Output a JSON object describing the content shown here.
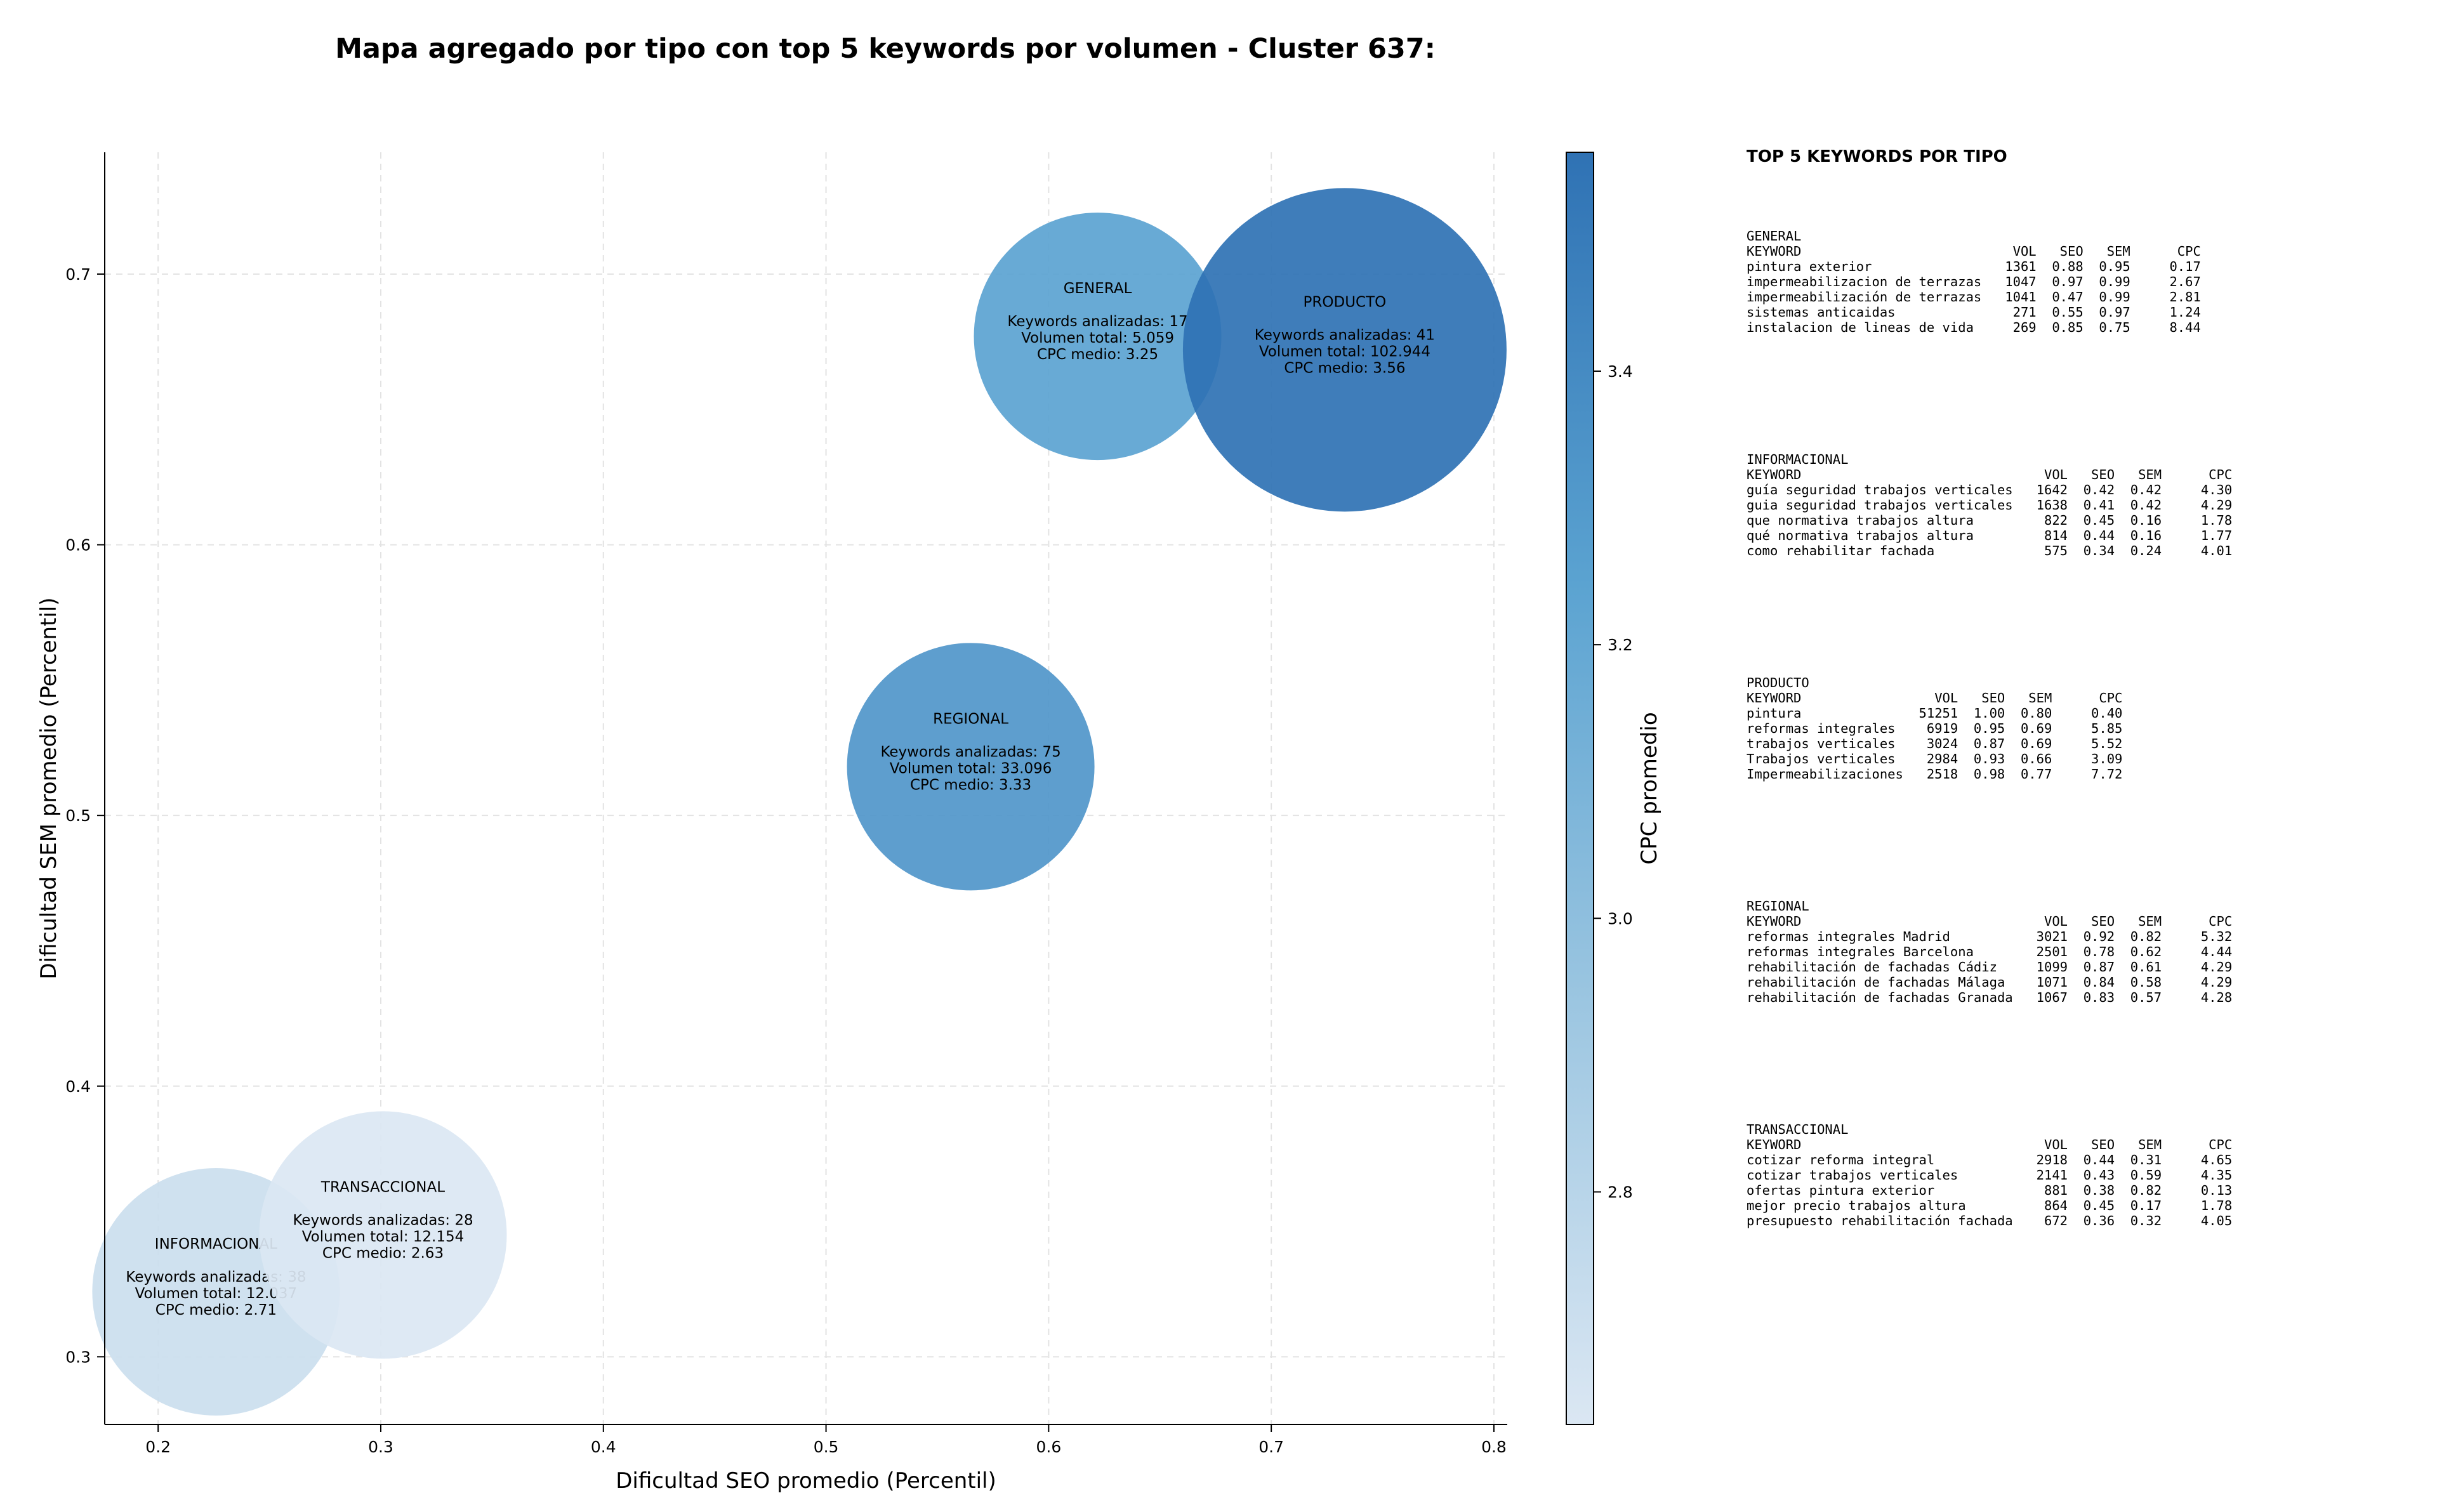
{
  "title": "Mapa agregado por tipo con top 5 keywords por volumen - Cluster 637:",
  "chart_data": {
    "type": "scatter",
    "xlabel": "Dificultad SEO promedio (Percentil)",
    "ylabel": "Dificultad SEM promedio (Percentil)",
    "xlim": [
      0.176,
      0.806
    ],
    "ylim": [
      0.275,
      0.745
    ],
    "xticks": [
      "0.2",
      "0.3",
      "0.4",
      "0.5",
      "0.6",
      "0.7",
      "0.8"
    ],
    "yticks": [
      "0.3",
      "0.4",
      "0.5",
      "0.6",
      "0.7"
    ],
    "grid": true,
    "colorbar": {
      "label": "CPC promedio",
      "range": [
        2.63,
        3.56
      ],
      "ticks": [
        "2.8",
        "3.0",
        "3.2",
        "3.4"
      ],
      "colormap": [
        "#dbe7f3",
        "#9cc6e1",
        "#5ba3d1",
        "#2f72b4"
      ]
    },
    "bubble_info_labels": {
      "keywords": "Keywords analizadas:",
      "volume": "Volumen total:",
      "cpc": "CPC medio:"
    },
    "points": [
      {
        "name": "GENERAL",
        "x": 0.622,
        "y": 0.677,
        "keywords": "17",
        "volume": "5.059",
        "volume_value": 5059,
        "cpc": "3.25",
        "cpc_value": 3.25
      },
      {
        "name": "PRODUCTO",
        "x": 0.733,
        "y": 0.672,
        "keywords": "41",
        "volume": "102.944",
        "volume_value": 102944,
        "cpc": "3.56",
        "cpc_value": 3.56
      },
      {
        "name": "REGIONAL",
        "x": 0.565,
        "y": 0.518,
        "keywords": "75",
        "volume": "33.096",
        "volume_value": 33096,
        "cpc": "3.33",
        "cpc_value": 3.33
      },
      {
        "name": "INFORMACIONAL",
        "x": 0.226,
        "y": 0.324,
        "keywords": "38",
        "volume": "12.037",
        "volume_value": 12037,
        "cpc": "2.71",
        "cpc_value": 2.71
      },
      {
        "name": "TRANSACCIONAL",
        "x": 0.301,
        "y": 0.345,
        "keywords": "28",
        "volume": "12.154",
        "volume_value": 12154,
        "cpc": "2.63",
        "cpc_value": 2.63
      }
    ]
  },
  "top_keywords": {
    "title": "TOP 5 KEYWORDS POR TIPO",
    "header": {
      "keyword": "KEYWORD",
      "vol": "VOL",
      "seo": "SEO",
      "sem": "SEM",
      "cpc": "CPC"
    },
    "groups": [
      {
        "name": "GENERAL",
        "rows": [
          [
            "pintura exterior",
            "1361",
            "0.88",
            "0.95",
            "0.17"
          ],
          [
            "impermeabilizacion de terrazas",
            "1047",
            "0.97",
            "0.99",
            "2.67"
          ],
          [
            "impermeabilización de terrazas",
            "1041",
            "0.47",
            "0.99",
            "2.81"
          ],
          [
            "sistemas anticaidas",
            "271",
            "0.55",
            "0.97",
            "1.24"
          ],
          [
            "instalacion de lineas de vida",
            "269",
            "0.85",
            "0.75",
            "8.44"
          ]
        ]
      },
      {
        "name": "INFORMACIONAL",
        "rows": [
          [
            "guía seguridad trabajos verticales",
            "1642",
            "0.42",
            "0.42",
            "4.30"
          ],
          [
            "guia seguridad trabajos verticales",
            "1638",
            "0.41",
            "0.42",
            "4.29"
          ],
          [
            "que normativa trabajos altura",
            "822",
            "0.45",
            "0.16",
            "1.78"
          ],
          [
            "qué normativa trabajos altura",
            "814",
            "0.44",
            "0.16",
            "1.77"
          ],
          [
            "como rehabilitar fachada",
            "575",
            "0.34",
            "0.24",
            "4.01"
          ]
        ]
      },
      {
        "name": "PRODUCTO",
        "rows": [
          [
            "pintura",
            "51251",
            "1.00",
            "0.80",
            "0.40"
          ],
          [
            "reformas integrales",
            "6919",
            "0.95",
            "0.69",
            "5.85"
          ],
          [
            "trabajos verticales",
            "3024",
            "0.87",
            "0.69",
            "5.52"
          ],
          [
            "Trabajos verticales",
            "2984",
            "0.93",
            "0.66",
            "3.09"
          ],
          [
            "Impermeabilizaciones",
            "2518",
            "0.98",
            "0.77",
            "7.72"
          ]
        ]
      },
      {
        "name": "REGIONAL",
        "rows": [
          [
            "reformas integrales Madrid",
            "3021",
            "0.92",
            "0.82",
            "5.32"
          ],
          [
            "reformas integrales Barcelona",
            "2501",
            "0.78",
            "0.62",
            "4.44"
          ],
          [
            "rehabilitación de fachadas Cádiz",
            "1099",
            "0.87",
            "0.61",
            "4.29"
          ],
          [
            "rehabilitación de fachadas Málaga",
            "1071",
            "0.84",
            "0.58",
            "4.29"
          ],
          [
            "rehabilitación de fachadas Granada",
            "1067",
            "0.83",
            "0.57",
            "4.28"
          ]
        ]
      },
      {
        "name": "TRANSACCIONAL",
        "rows": [
          [
            "cotizar reforma integral",
            "2918",
            "0.44",
            "0.31",
            "4.65"
          ],
          [
            "cotizar trabajos verticales",
            "2141",
            "0.43",
            "0.59",
            "4.35"
          ],
          [
            "ofertas pintura exterior",
            "881",
            "0.38",
            "0.82",
            "0.13"
          ],
          [
            "mejor precio trabajos altura",
            "864",
            "0.45",
            "0.17",
            "1.78"
          ],
          [
            "presupuesto rehabilitación fachada",
            "672",
            "0.36",
            "0.32",
            "4.05"
          ]
        ]
      }
    ]
  }
}
